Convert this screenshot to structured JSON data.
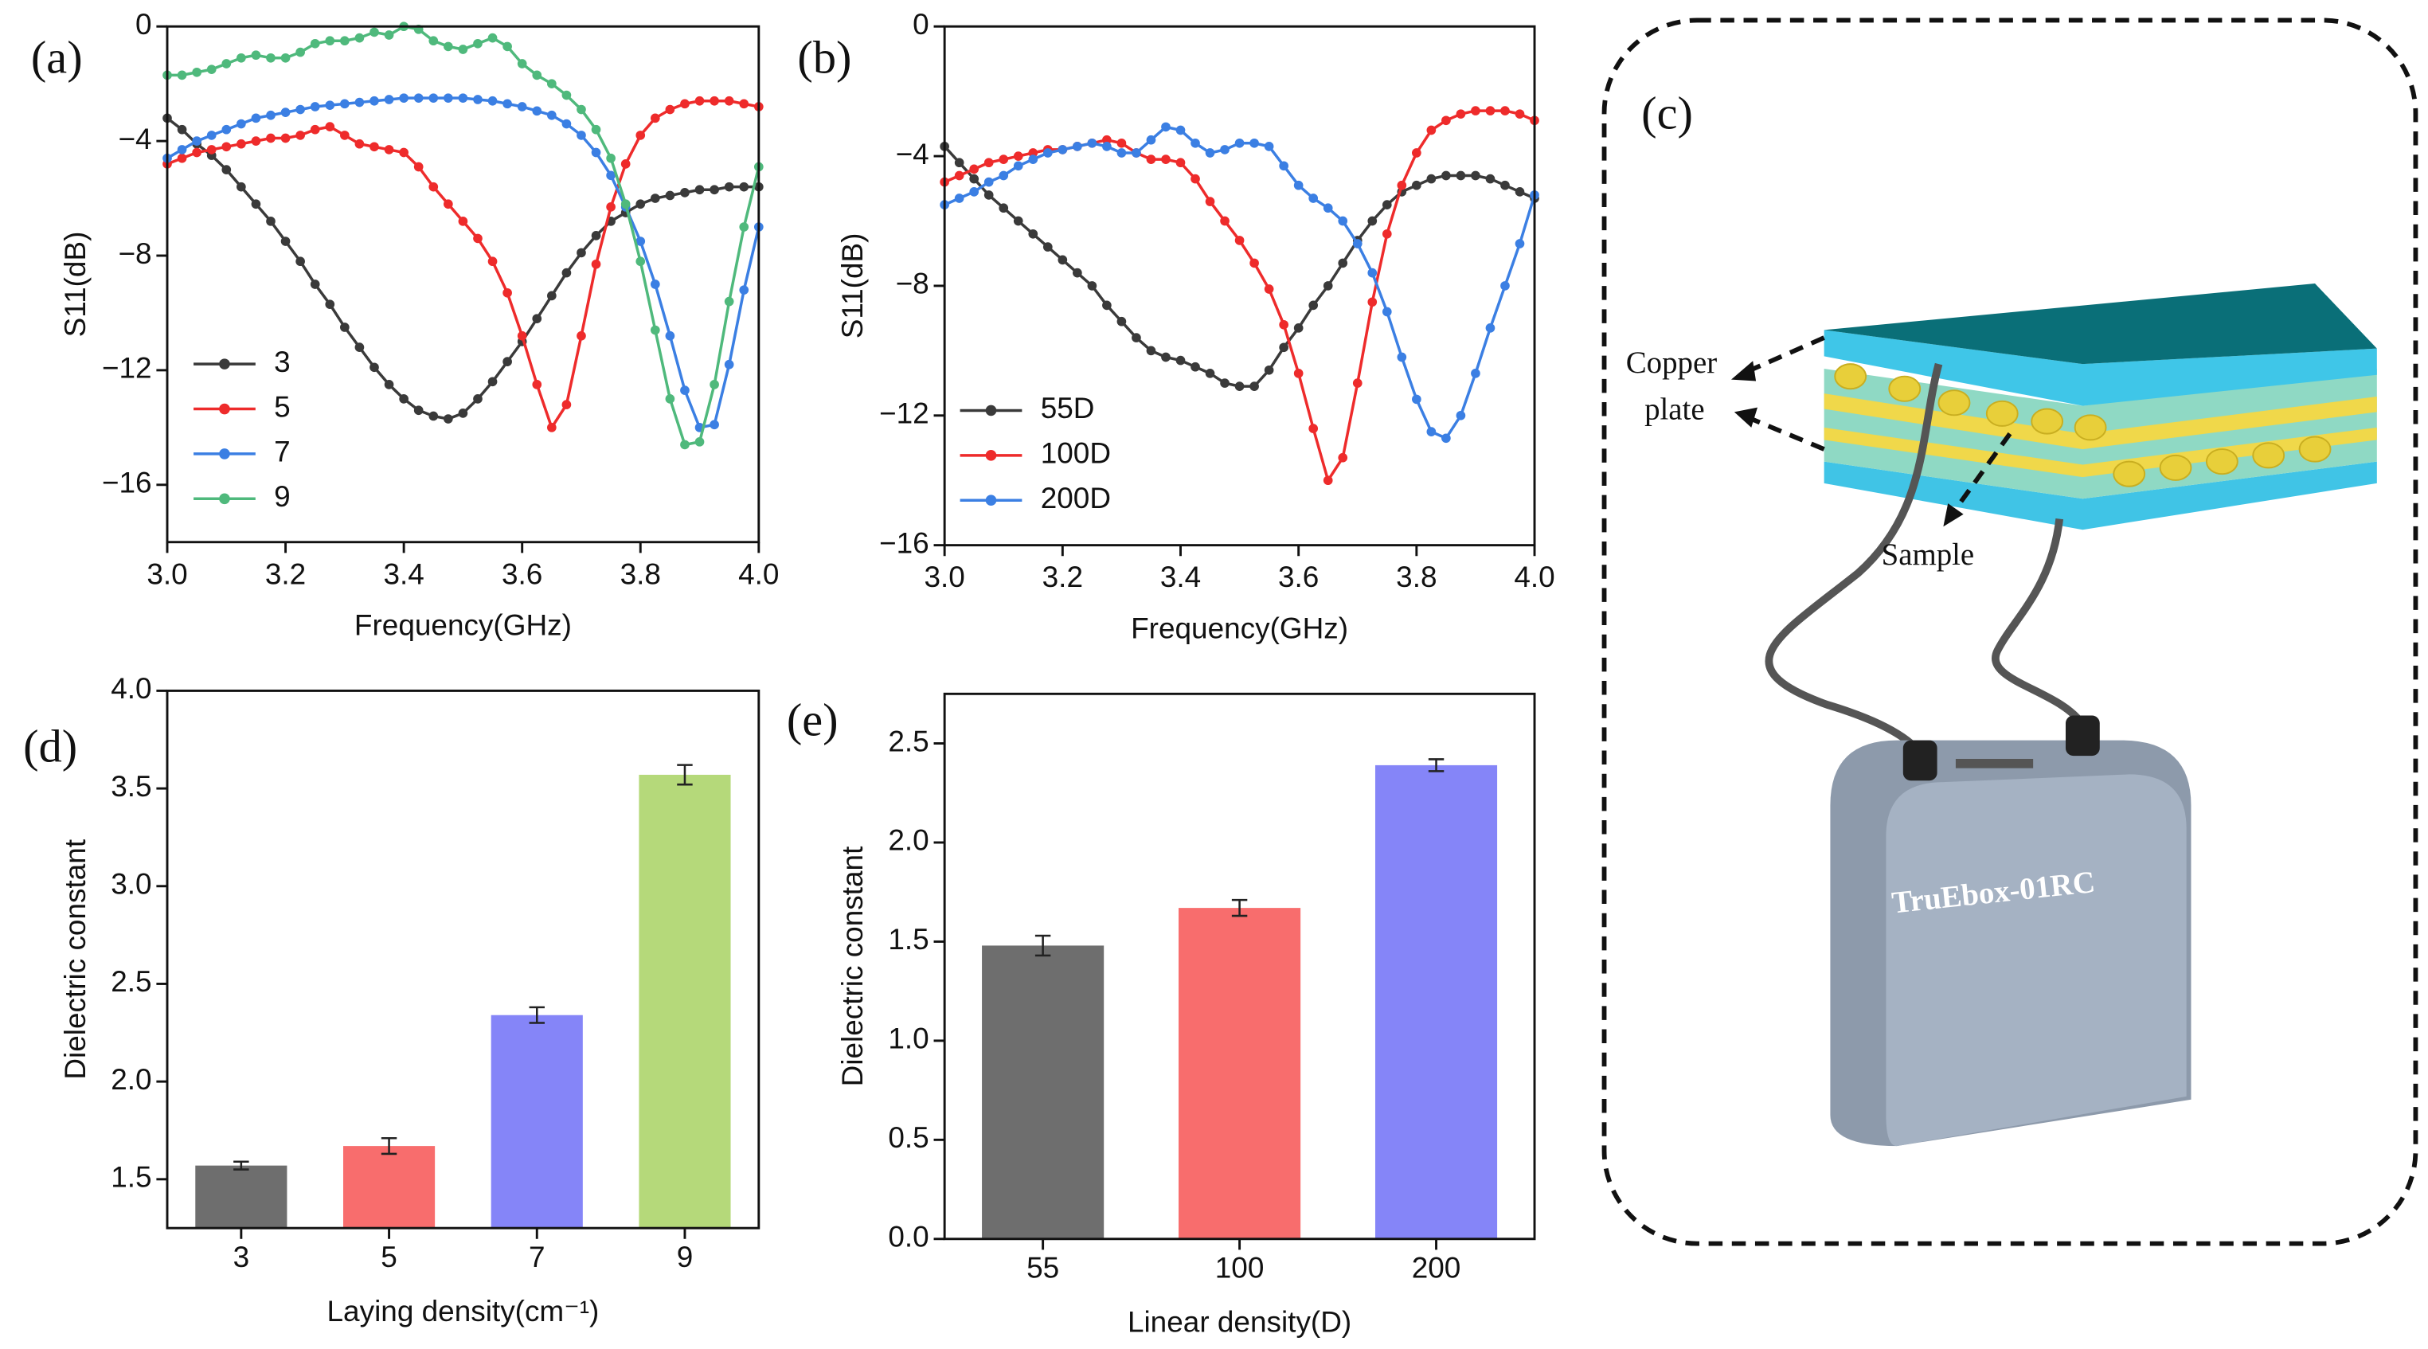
{
  "chart_data": [
    {
      "type": "line",
      "panel_label": "(a)",
      "x_label": "Frequency(GHz)",
      "y_label": "S11(dB)",
      "xlim": [
        3.0,
        4.0
      ],
      "ylim": [
        -18,
        0
      ],
      "xticks": [
        {
          "value": 3,
          "label": "3.0"
        },
        {
          "value": 3.2,
          "label": "3.2"
        },
        {
          "value": 3.4,
          "label": "3.4"
        },
        {
          "value": 3.6,
          "label": "3.6"
        },
        {
          "value": 3.8,
          "label": "3.8"
        },
        {
          "value": 4,
          "label": "4.0"
        }
      ],
      "yticks": [
        0,
        {
          "value": -4,
          "label": "−4"
        },
        {
          "value": -8,
          "label": "−8"
        },
        {
          "value": -12,
          "label": "−12"
        },
        {
          "value": -16,
          "label": "−16"
        }
      ],
      "legend": "lower left",
      "x": [
        3,
        3.025,
        3.05,
        3.075,
        3.1,
        3.125,
        3.15,
        3.175,
        3.2,
        3.225,
        3.25,
        3.275,
        3.3,
        3.325,
        3.35,
        3.375,
        3.4,
        3.425,
        3.45,
        3.475,
        3.5,
        3.525,
        3.55,
        3.575,
        3.6,
        3.625,
        3.65,
        3.675,
        3.7,
        3.725,
        3.75,
        3.775,
        3.8,
        3.825,
        3.85,
        3.875,
        3.9,
        3.925,
        3.95,
        3.975,
        4
      ],
      "series": [
        {
          "name": "3",
          "color": "#3a3a3a",
          "values": [
            -3.2,
            -3.6,
            -4.1,
            -4.5,
            -5.0,
            -5.6,
            -6.2,
            -6.8,
            -7.5,
            -8.2,
            -9.0,
            -9.7,
            -10.5,
            -11.2,
            -11.9,
            -12.5,
            -13.0,
            -13.4,
            -13.6,
            -13.7,
            -13.5,
            -13.0,
            -12.4,
            -11.7,
            -11.0,
            -10.2,
            -9.4,
            -8.6,
            -7.9,
            -7.3,
            -6.8,
            -6.5,
            -6.2,
            -6.0,
            -5.9,
            -5.8,
            -5.7,
            -5.7,
            -5.6,
            -5.6,
            -5.6
          ]
        },
        {
          "name": "5",
          "color": "#ee2b2b",
          "values": [
            -4.8,
            -4.6,
            -4.4,
            -4.3,
            -4.2,
            -4.1,
            -4.0,
            -3.9,
            -3.9,
            -3.8,
            -3.6,
            -3.5,
            -3.8,
            -4.1,
            -4.2,
            -4.3,
            -4.4,
            -4.9,
            -5.6,
            -6.2,
            -6.8,
            -7.4,
            -8.2,
            -9.3,
            -10.8,
            -12.5,
            -14.0,
            -13.2,
            -10.8,
            -8.3,
            -6.3,
            -4.8,
            -3.8,
            -3.2,
            -2.9,
            -2.7,
            -2.6,
            -2.6,
            -2.6,
            -2.7,
            -2.8
          ]
        },
        {
          "name": "7",
          "color": "#3b7fe3",
          "values": [
            -4.6,
            -4.3,
            -4.0,
            -3.8,
            -3.6,
            -3.4,
            -3.2,
            -3.1,
            -3.0,
            -2.9,
            -2.8,
            -2.75,
            -2.7,
            -2.65,
            -2.6,
            -2.55,
            -2.5,
            -2.5,
            -2.5,
            -2.5,
            -2.5,
            -2.55,
            -2.6,
            -2.7,
            -2.8,
            -2.95,
            -3.1,
            -3.4,
            -3.8,
            -4.4,
            -5.2,
            -6.3,
            -7.5,
            -9.0,
            -10.8,
            -12.7,
            -14.0,
            -13.9,
            -11.8,
            -9.2,
            -7.0
          ]
        },
        {
          "name": "9",
          "color": "#4fb97c",
          "values": [
            -1.7,
            -1.7,
            -1.6,
            -1.5,
            -1.3,
            -1.1,
            -1.0,
            -1.1,
            -1.1,
            -0.9,
            -0.6,
            -0.5,
            -0.5,
            -0.4,
            -0.2,
            -0.3,
            0,
            -0.1,
            -0.5,
            -0.7,
            -0.8,
            -0.6,
            -0.4,
            -0.7,
            -1.3,
            -1.7,
            -2.0,
            -2.4,
            -2.9,
            -3.6,
            -4.6,
            -6.2,
            -8.2,
            -10.6,
            -13.0,
            -14.6,
            -14.5,
            -12.5,
            -9.6,
            -7.0,
            -4.9
          ]
        }
      ]
    },
    {
      "type": "line",
      "panel_label": "(b)",
      "x_label": "Frequency(GHz)",
      "y_label": "S11(dB)",
      "xlim": [
        3.0,
        4.0
      ],
      "ylim": [
        -16,
        0
      ],
      "xticks": [
        {
          "value": 3,
          "label": "3.0"
        },
        {
          "value": 3.2,
          "label": "3.2"
        },
        {
          "value": 3.4,
          "label": "3.4"
        },
        {
          "value": 3.6,
          "label": "3.6"
        },
        {
          "value": 3.8,
          "label": "3.8"
        },
        {
          "value": 4,
          "label": "4.0"
        }
      ],
      "yticks": [
        0,
        {
          "value": -4,
          "label": "−4"
        },
        {
          "value": -8,
          "label": "−8"
        },
        {
          "value": -12,
          "label": "−12"
        },
        {
          "value": -16,
          "label": "−16"
        }
      ],
      "legend": "lower left",
      "x": [
        3,
        3.025,
        3.05,
        3.075,
        3.1,
        3.125,
        3.15,
        3.175,
        3.2,
        3.225,
        3.25,
        3.275,
        3.3,
        3.325,
        3.35,
        3.375,
        3.4,
        3.425,
        3.45,
        3.475,
        3.5,
        3.525,
        3.55,
        3.575,
        3.6,
        3.625,
        3.65,
        3.675,
        3.7,
        3.725,
        3.75,
        3.775,
        3.8,
        3.825,
        3.85,
        3.875,
        3.9,
        3.925,
        3.95,
        3.975,
        4
      ],
      "series": [
        {
          "name": "55D",
          "color": "#3a3a3a",
          "values": [
            -3.7,
            -4.2,
            -4.7,
            -5.2,
            -5.6,
            -6.0,
            -6.4,
            -6.8,
            -7.2,
            -7.6,
            -8.0,
            -8.6,
            -9.1,
            -9.6,
            -10.0,
            -10.2,
            -10.3,
            -10.5,
            -10.7,
            -11.0,
            -11.1,
            -11.1,
            -10.6,
            -9.9,
            -9.3,
            -8.6,
            -8.0,
            -7.3,
            -6.6,
            -6.0,
            -5.5,
            -5.1,
            -4.9,
            -4.7,
            -4.6,
            -4.6,
            -4.6,
            -4.7,
            -4.9,
            -5.1,
            -5.3
          ]
        },
        {
          "name": "100D",
          "color": "#ee2b2b",
          "values": [
            -4.8,
            -4.6,
            -4.4,
            -4.2,
            -4.1,
            -4.0,
            -3.9,
            -3.8,
            -3.8,
            -3.7,
            -3.6,
            -3.5,
            -3.6,
            -3.9,
            -4.1,
            -4.1,
            -4.2,
            -4.7,
            -5.4,
            -6.0,
            -6.6,
            -7.3,
            -8.1,
            -9.2,
            -10.7,
            -12.4,
            -14.0,
            -13.3,
            -11.0,
            -8.5,
            -6.4,
            -4.9,
            -3.9,
            -3.2,
            -2.9,
            -2.7,
            -2.6,
            -2.6,
            -2.6,
            -2.7,
            -2.9
          ]
        },
        {
          "name": "200D",
          "color": "#3b7fe3",
          "values": [
            -5.5,
            -5.3,
            -5.1,
            -4.8,
            -4.6,
            -4.3,
            -4.1,
            -3.9,
            -3.8,
            -3.7,
            -3.6,
            -3.7,
            -3.9,
            -3.9,
            -3.5,
            -3.1,
            -3.2,
            -3.6,
            -3.9,
            -3.8,
            -3.6,
            -3.6,
            -3.7,
            -4.3,
            -4.9,
            -5.3,
            -5.6,
            -6.0,
            -6.7,
            -7.6,
            -8.8,
            -10.2,
            -11.5,
            -12.5,
            -12.7,
            -12.0,
            -10.7,
            -9.3,
            -8.0,
            -6.7,
            -5.2
          ]
        }
      ]
    },
    {
      "type": "bar",
      "panel_label": "(d)",
      "x_label": "Laying density(cm⁻¹)",
      "y_label": "Dielectric constant",
      "categories": [
        "3",
        "5",
        "7",
        "9"
      ],
      "values": [
        1.57,
        1.67,
        2.34,
        3.57
      ],
      "errors": [
        0.02,
        0.04,
        0.04,
        0.05
      ],
      "colors": [
        "#6e6e6e",
        "#f86d6d",
        "#8585f8",
        "#b5d97a"
      ],
      "ylim": [
        1.25,
        4.0
      ],
      "yticks": [
        1.5,
        {
          "value": 2,
          "label": "2.0"
        },
        2.5,
        {
          "value": 3,
          "label": "3.0"
        },
        3.5,
        {
          "value": 4,
          "label": "4.0"
        }
      ]
    },
    {
      "type": "bar",
      "panel_label": "(e)",
      "x_label": "Linear density(D)",
      "y_label": "Dielectric constant",
      "categories": [
        "55",
        "100",
        "200"
      ],
      "values": [
        1.48,
        1.67,
        2.39
      ],
      "errors": [
        0.05,
        0.04,
        0.03
      ],
      "colors": [
        "#6e6e6e",
        "#f86d6d",
        "#8585f8"
      ],
      "ylim": [
        0,
        2.75
      ],
      "yticks": [
        {
          "value": 0,
          "label": "0.0"
        },
        0.5,
        {
          "value": 1,
          "label": "1.0"
        },
        1.5,
        {
          "value": 2,
          "label": "2.0"
        },
        2.5
      ]
    }
  ],
  "diagram": {
    "panel_label": "(c)",
    "copper_plate": [
      "Copper",
      "plate"
    ],
    "sample": "Sample",
    "device": "TruEbox-01RC"
  }
}
